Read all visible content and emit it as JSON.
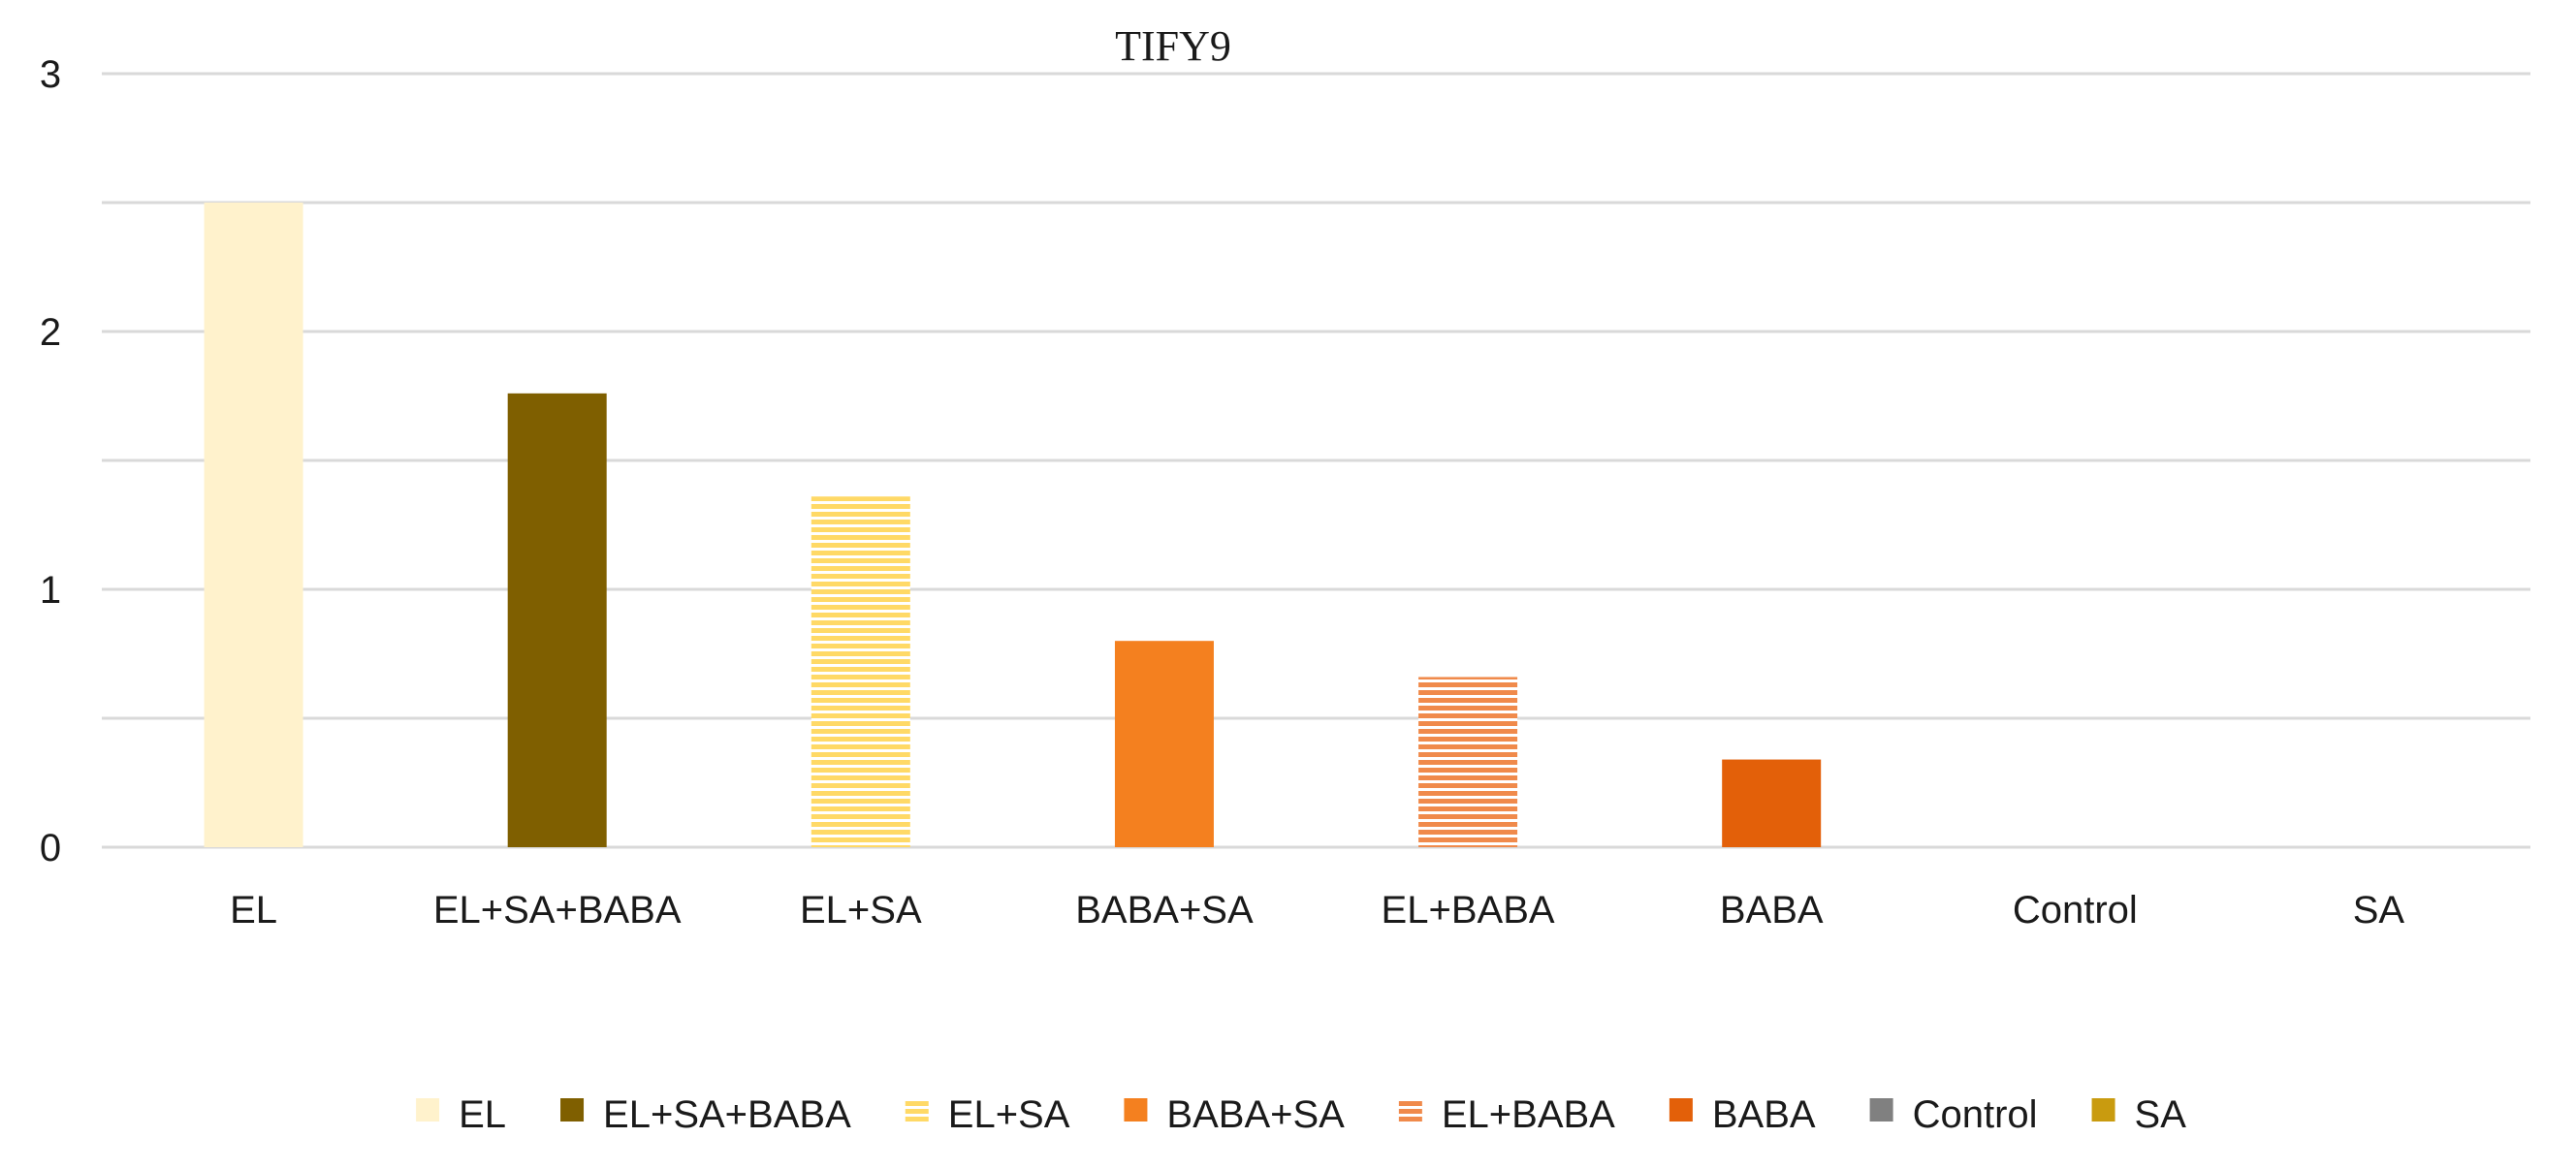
{
  "chart_data": {
    "type": "bar",
    "title": "TIFY9",
    "xlabel": "",
    "ylabel": "",
    "ylim": [
      0,
      3
    ],
    "yticks": [
      "0",
      "1",
      "2",
      "3"
    ],
    "grid": true,
    "legend_position": "bottom",
    "categories": [
      "EL",
      "EL+SA+BABA",
      "EL+SA",
      "BABA+SA",
      "EL+BABA",
      "BABA",
      "Control",
      "SA"
    ],
    "values": [
      2.5,
      1.76,
      1.36,
      0.8,
      0.66,
      0.34,
      0,
      0
    ],
    "colors": [
      "#FFF2CC",
      "#7F5F00",
      "#FFD966",
      "#F4801F",
      "#F4B183",
      "#E36009",
      "#808080",
      "#C99B0F"
    ],
    "patterns": [
      "solid",
      "solid",
      "horizontal-lines",
      "solid",
      "horizontal-lines",
      "solid",
      "solid",
      "solid"
    ],
    "legend": [
      "EL",
      "EL+SA+BABA",
      "EL+SA",
      "BABA+SA",
      "EL+BABA",
      "BABA",
      "Control",
      "SA"
    ]
  }
}
